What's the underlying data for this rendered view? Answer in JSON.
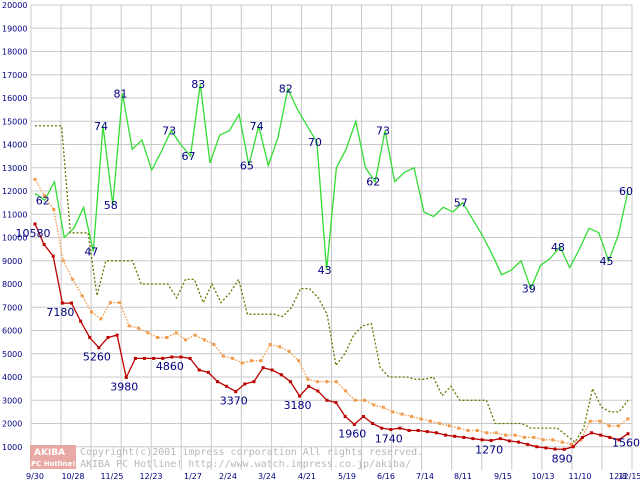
{
  "chart_data": {
    "type": "line",
    "title": "",
    "xlabel": "",
    "ylabel": "",
    "ylim": [
      0,
      20000
    ],
    "yticks": [
      1000,
      2000,
      3000,
      4000,
      5000,
      6000,
      7000,
      8000,
      9000,
      10000,
      11000,
      12000,
      13000,
      14000,
      15000,
      16000,
      17000,
      18000,
      19000,
      20000
    ],
    "xtick_labels": [
      "9/30",
      "10/28",
      "11/25",
      "12/23",
      "1/27",
      "2/24",
      "3/24",
      "4/21",
      "5/19",
      "6/16",
      "7/14",
      "8/11",
      "9/15",
      "10/13",
      "11/10",
      "12/8",
      "12/15"
    ],
    "grid": true,
    "colors": {
      "green": "#33dd33",
      "dark_olive": "#667700",
      "orange": "#f09a4a",
      "red": "#bb0000",
      "grid": "#c8c8c8",
      "label": "#000080"
    },
    "series": [
      {
        "name": "",
        "style": "solid",
        "color": "#33dd33",
        "values": [
          11900,
          11600,
          12400,
          10000,
          10400,
          11300,
          9400,
          14800,
          11400,
          16200,
          13800,
          14200,
          12900,
          13700,
          14600,
          14000,
          13500,
          16600,
          13200,
          14400,
          14600,
          15300,
          13100,
          14800,
          13100,
          14300,
          16400,
          15500,
          14800,
          14100,
          8600,
          13000,
          13800,
          15000,
          13000,
          12400,
          14600,
          12400,
          12800,
          13000,
          11100,
          10900,
          11300,
          11100,
          11500,
          10800,
          10100,
          9300,
          8400,
          8600,
          9000,
          7800,
          8800,
          9100,
          9600,
          8700,
          9500,
          10400,
          10200,
          9000,
          10100,
          12000
        ]
      },
      {
        "name": "",
        "style": "dashed",
        "color": "#667700",
        "values": [
          14800,
          14800,
          14800,
          14800,
          10200,
          10200,
          10200,
          7500,
          9000,
          9000,
          9000,
          9000,
          8000,
          8000,
          8000,
          8000,
          7400,
          8200,
          8200,
          7200,
          8000,
          7200,
          7600,
          8200,
          6700,
          6700,
          6700,
          6700,
          6600,
          7000,
          7800,
          7800,
          7400,
          6700,
          4500,
          5000,
          5800,
          6200,
          6300,
          4400,
          4000,
          4000,
          4000,
          3900,
          3900,
          4000,
          3200,
          3600,
          3000,
          3000,
          3000,
          3000,
          2000,
          2000,
          2000,
          2000,
          1800,
          1800,
          1800,
          1800,
          1500,
          1200,
          1800,
          3500,
          2700,
          2500,
          2500,
          3000
        ]
      },
      {
        "name": "",
        "style": "dotted-squares",
        "color": "#f09a4a",
        "values": [
          12500,
          11800,
          11200,
          9000,
          8200,
          7500,
          6800,
          6500,
          7200,
          7200,
          6200,
          6100,
          5900,
          5700,
          5700,
          5900,
          5600,
          5800,
          5600,
          5400,
          4900,
          4800,
          4600,
          4700,
          4700,
          5400,
          5300,
          5100,
          4700,
          3900,
          3800,
          3800,
          3800,
          3400,
          3000,
          3000,
          2800,
          2700,
          2500,
          2400,
          2300,
          2200,
          2100,
          2000,
          1900,
          1800,
          1700,
          1700,
          1600,
          1600,
          1500,
          1500,
          1400,
          1400,
          1300,
          1300,
          1200,
          1100,
          1300,
          2100,
          2100,
          1900,
          1900,
          2200
        ]
      },
      {
        "name": "",
        "style": "solid-squares",
        "color": "#bb0000",
        "values": [
          10580,
          9700,
          9200,
          7180,
          7180,
          6400,
          5700,
          5260,
          5700,
          5800,
          3980,
          4800,
          4800,
          4800,
          4800,
          4860,
          4860,
          4800,
          4300,
          4200,
          3800,
          3600,
          3370,
          3700,
          3800,
          4400,
          4300,
          4100,
          3800,
          3180,
          3600,
          3400,
          3000,
          2900,
          2300,
          1960,
          2300,
          2000,
          1800,
          1740,
          1800,
          1700,
          1700,
          1650,
          1600,
          1500,
          1450,
          1400,
          1350,
          1300,
          1270,
          1350,
          1250,
          1200,
          1100,
          1000,
          950,
          900,
          890,
          1000,
          1400,
          1600,
          1500,
          1400,
          1300,
          1560
        ]
      }
    ],
    "data_labels": [
      {
        "series": 0,
        "index": 1,
        "value": 62
      },
      {
        "series": 0,
        "index": 6,
        "value": 47
      },
      {
        "series": 0,
        "index": 7,
        "value": 74
      },
      {
        "series": 0,
        "index": 8,
        "value": 58
      },
      {
        "series": 0,
        "index": 9,
        "value": 81
      },
      {
        "series": 0,
        "index": 14,
        "value": 73
      },
      {
        "series": 0,
        "index": 16,
        "value": 67
      },
      {
        "series": 0,
        "index": 17,
        "value": 83
      },
      {
        "series": 0,
        "index": 22,
        "value": 65
      },
      {
        "series": 0,
        "index": 23,
        "value": 74
      },
      {
        "series": 0,
        "index": 26,
        "value": 82
      },
      {
        "series": 0,
        "index": 29,
        "value": 70
      },
      {
        "series": 0,
        "index": 30,
        "value": 43
      },
      {
        "series": 0,
        "index": 35,
        "value": 62
      },
      {
        "series": 0,
        "index": 36,
        "value": 73
      },
      {
        "series": 0,
        "index": 44,
        "value": 57
      },
      {
        "series": 0,
        "index": 51,
        "value": 39
      },
      {
        "series": 0,
        "index": 54,
        "value": 48
      },
      {
        "series": 0,
        "index": 59,
        "value": 45
      },
      {
        "series": 0,
        "index": 61,
        "value": 60
      },
      {
        "series": 3,
        "index": 0,
        "value": 10580
      },
      {
        "series": 3,
        "index": 3,
        "value": 7180
      },
      {
        "series": 3,
        "index": 7,
        "value": 5260
      },
      {
        "series": 3,
        "index": 10,
        "value": 3980
      },
      {
        "series": 3,
        "index": 15,
        "value": 4860
      },
      {
        "series": 3,
        "index": 22,
        "value": 3370
      },
      {
        "series": 3,
        "index": 29,
        "value": 3180
      },
      {
        "series": 3,
        "index": 35,
        "value": 1960
      },
      {
        "series": 3,
        "index": 39,
        "value": 1740
      },
      {
        "series": 3,
        "index": 50,
        "value": 1270
      },
      {
        "series": 3,
        "index": 58,
        "value": 890
      },
      {
        "series": 3,
        "index": 65,
        "value": 1560
      }
    ]
  },
  "watermark": {
    "logo_top": "AKIBA",
    "logo_bottom": "PC Hotline!",
    "line1": "Copyright(c)2001 impress corporation All rights reserved.",
    "line2": "AKIBA PC Hotline!  http://www.watch.impress.co.jp/akiba/"
  }
}
